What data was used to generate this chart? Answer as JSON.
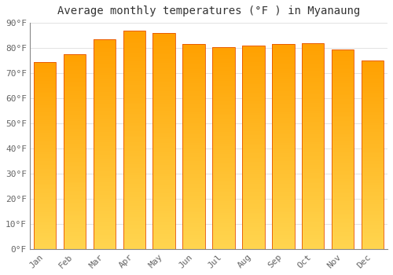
{
  "title": "Average monthly temperatures (°F ) in Myanaung",
  "months": [
    "Jan",
    "Feb",
    "Mar",
    "Apr",
    "May",
    "Jun",
    "Jul",
    "Aug",
    "Sep",
    "Oct",
    "Nov",
    "Dec"
  ],
  "values": [
    74.5,
    77.5,
    83.5,
    87.0,
    86.0,
    81.5,
    80.5,
    81.0,
    81.5,
    82.0,
    79.5,
    75.0
  ],
  "ylim": [
    0,
    90
  ],
  "yticks": [
    0,
    10,
    20,
    30,
    40,
    50,
    60,
    70,
    80,
    90
  ],
  "ytick_labels": [
    "0°F",
    "10°F",
    "20°F",
    "30°F",
    "40°F",
    "50°F",
    "60°F",
    "70°F",
    "80°F",
    "90°F"
  ],
  "bar_color_bottom": "#FFD54F",
  "bar_color_top": "#FFA000",
  "bar_edge_color": "#E65100",
  "background_color": "#FFFFFF",
  "plot_bg_color": "#FFFFFF",
  "grid_color": "#DDDDDD",
  "title_fontsize": 10,
  "tick_fontsize": 8,
  "bar_width": 0.75
}
